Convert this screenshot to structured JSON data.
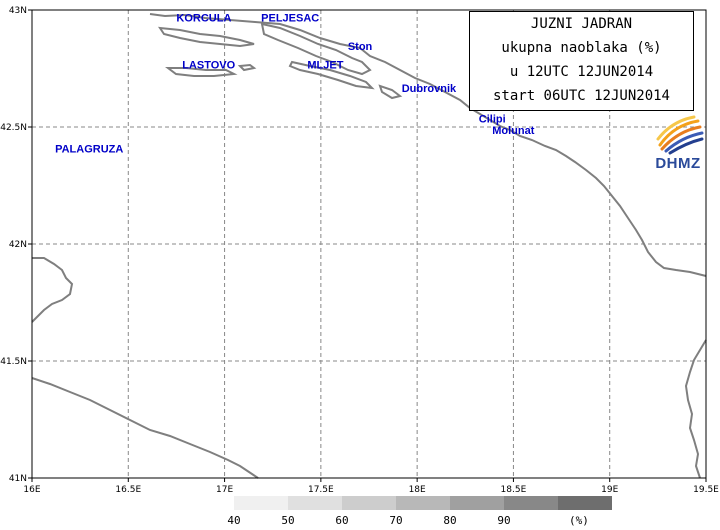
{
  "title": {
    "line1": "JUZNI JADRAN",
    "line2": "ukupna naoblaka (%)",
    "line3": "u 12UTC 12JUN2014",
    "line4": "start 06UTC 12JUN2014"
  },
  "logo": {
    "text": "DHMZ",
    "icon": "dhmz-logo-swirl-icon"
  },
  "axes": {
    "lon_ticks": [
      "16E",
      "16.5E",
      "17E",
      "17.5E",
      "18E",
      "18.5E",
      "19E",
      "19.5E"
    ],
    "lat_ticks": [
      "43N",
      "42.5N",
      "42N",
      "41.5N",
      "41N"
    ],
    "lon_range": [
      16,
      19.5
    ],
    "lat_range": [
      41,
      43
    ],
    "grid": true
  },
  "places": [
    {
      "name": "KORCULA",
      "lon": 16.75,
      "lat": 42.95
    },
    {
      "name": "PELJESAC",
      "lon": 17.19,
      "lat": 42.95
    },
    {
      "name": "Ston",
      "lon": 17.64,
      "lat": 42.83
    },
    {
      "name": "LASTOVO",
      "lon": 16.78,
      "lat": 42.75
    },
    {
      "name": "MLJET",
      "lon": 17.43,
      "lat": 42.75
    },
    {
      "name": "Dubrovnik",
      "lon": 17.92,
      "lat": 42.65
    },
    {
      "name": "Cilipi",
      "lon": 18.32,
      "lat": 42.52
    },
    {
      "name": "Molunat",
      "lon": 18.39,
      "lat": 42.47
    },
    {
      "name": "PALAGRUZA",
      "lon": 16.12,
      "lat": 42.39
    }
  ],
  "colorbar": {
    "labels": [
      "40",
      "50",
      "60",
      "70",
      "80",
      "90"
    ],
    "unit": "(%)",
    "colors": [
      "#f0f0f0",
      "#e0e0e0",
      "#cdcdcd",
      "#b8b8b8",
      "#a0a0a0",
      "#888888",
      "#6e6e6e"
    ]
  },
  "coast_color": "#7f7f7f"
}
